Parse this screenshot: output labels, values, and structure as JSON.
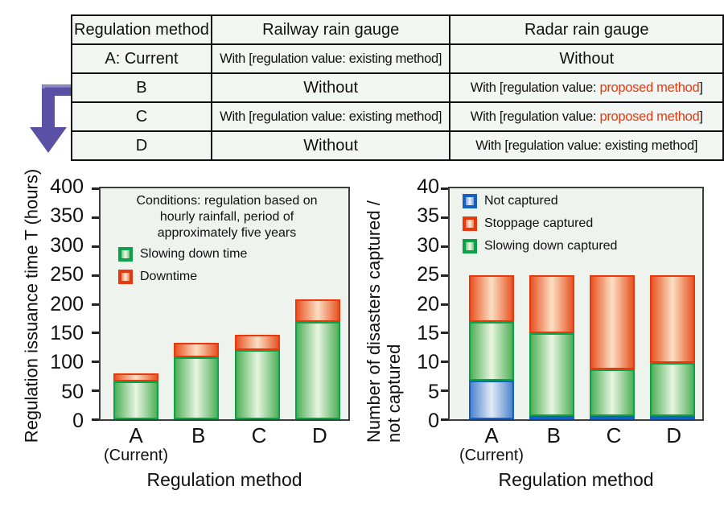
{
  "table": {
    "headers": [
      "Regulation method",
      "Railway rain gauge",
      "Radar rain gauge"
    ],
    "rows": [
      {
        "method": "A: Current",
        "railway": {
          "text": "With [regulation value: existing method]"
        },
        "radar": {
          "text": "Without"
        }
      },
      {
        "method": "B",
        "railway": {
          "text": "Without"
        },
        "radar": {
          "prefix": "With [regulation value: ",
          "highlight": "proposed method",
          "suffix": "]"
        }
      },
      {
        "method": "C",
        "railway": {
          "text": "With [regulation value: existing method]"
        },
        "radar": {
          "prefix": "With [regulation value: ",
          "highlight": "proposed method",
          "suffix": "]"
        }
      },
      {
        "method": "D",
        "railway": {
          "text": "Without"
        },
        "radar": {
          "text": "With [regulation value: existing method]"
        }
      }
    ],
    "highlight_color": "#e8380d"
  },
  "arrow": {
    "color": "#5a51a5",
    "highlight": "#948dc8"
  },
  "chart_data": [
    {
      "type": "bar",
      "stacked": true,
      "title": "",
      "ylabel_lines": [
        "Regulation issuance time T (hours)"
      ],
      "xlabel": "Regulation method",
      "categories": [
        "A",
        "B",
        "C",
        "D"
      ],
      "category_note": {
        "index": 0,
        "label": "(Current)"
      },
      "ylim": [
        0,
        400
      ],
      "ytick_step": 50,
      "grid": false,
      "legend_position": "inside-top-left",
      "annotation_lines": [
        "Conditions: regulation based on",
        "hourly rainfall, period of",
        "approximately five years"
      ],
      "series": [
        {
          "name": "Slowing down time",
          "color": "green",
          "values": [
            65,
            107,
            120,
            168
          ]
        },
        {
          "name": "Downtime",
          "color": "red",
          "values": [
            15,
            25,
            27,
            40
          ]
        }
      ],
      "totals": [
        80,
        132,
        147,
        208
      ],
      "legend": [
        {
          "label": "Slowing down time",
          "color": "green"
        },
        {
          "label": "Downtime",
          "color": "red"
        }
      ]
    },
    {
      "type": "bar",
      "stacked": true,
      "title": "",
      "ylabel_lines": [
        "Number of disasters captured /",
        "not captured"
      ],
      "xlabel": "Regulation method",
      "categories": [
        "A",
        "B",
        "C",
        "D"
      ],
      "category_note": {
        "index": 0,
        "label": "(Current)"
      },
      "ylim": [
        0,
        40
      ],
      "ytick_step": 5,
      "grid": false,
      "legend_position": "inside-top-left",
      "series": [
        {
          "name": "Not captured",
          "color": "blue",
          "values": [
            6.7,
            0.6,
            0.6,
            0.6
          ]
        },
        {
          "name": "Slowing down captured",
          "color": "green",
          "values": [
            10.1,
            14.3,
            8.1,
            9.2
          ]
        },
        {
          "name": "Stoppage captured",
          "color": "red",
          "values": [
            8.2,
            10.1,
            16.3,
            15.2
          ]
        }
      ],
      "totals": [
        25,
        25,
        25,
        25
      ],
      "legend": [
        {
          "label": "Not captured",
          "color": "blue"
        },
        {
          "label": "Stoppage captured",
          "color": "red"
        },
        {
          "label": "Slowing down captured",
          "color": "green"
        }
      ]
    }
  ],
  "colors": {
    "green_border": "#0ba04a",
    "red_border": "#e8380d",
    "blue_border": "#1660c0",
    "plot_background": "#eef3ee",
    "table_cell_background": "#f3f7f3",
    "arrow_purple": "#5a51a5"
  }
}
